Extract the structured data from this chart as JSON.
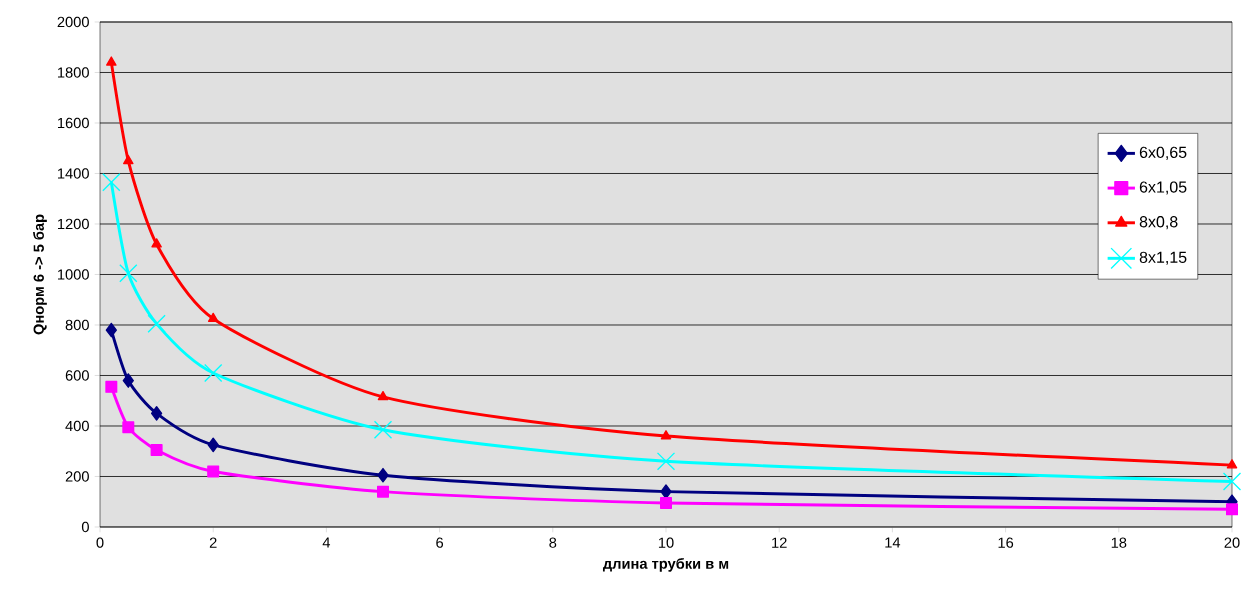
{
  "chart_data": {
    "type": "line",
    "xlabel": "длина трубки в м",
    "ylabel": "Qнорм 6 -> 5 бар",
    "x": [
      0.2,
      0.5,
      1,
      2,
      5,
      10,
      20
    ],
    "series": [
      {
        "name": "6x0,65",
        "color": "#000080",
        "marker": "diamond",
        "values": [
          780,
          580,
          450,
          325,
          205,
          140,
          100
        ]
      },
      {
        "name": "6x1,05",
        "color": "#ff00ff",
        "marker": "square",
        "values": [
          555,
          395,
          305,
          220,
          140,
          95,
          70
        ]
      },
      {
        "name": "8x0,8",
        "color": "#ff0000",
        "marker": "triangle",
        "values": [
          1840,
          1450,
          1120,
          825,
          515,
          360,
          245
        ]
      },
      {
        "name": "8x1,15",
        "color": "#00ffff",
        "marker": "cross",
        "values": [
          1365,
          1005,
          805,
          610,
          385,
          260,
          180
        ]
      }
    ],
    "xlim": [
      0,
      20
    ],
    "ylim": [
      0,
      2000
    ],
    "xticks": [
      0,
      2,
      4,
      6,
      8,
      10,
      12,
      14,
      16,
      18,
      20
    ],
    "yticks": [
      0,
      200,
      400,
      600,
      800,
      1000,
      1200,
      1400,
      1600,
      1800,
      2000
    ],
    "grid": "y",
    "legend": "right",
    "line_style": "solid"
  }
}
